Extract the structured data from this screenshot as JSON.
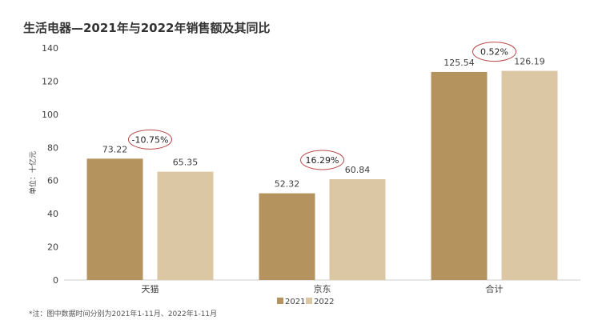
{
  "colors": {
    "s2021": "#b5935f",
    "s2022": "#dbc7a3",
    "ellipse": "#b94a4a",
    "axis": "#cccccc",
    "text": "#404040"
  },
  "chart_data": {
    "type": "bar",
    "title": "生活电器—2021年与2022年销售额及其同比",
    "ylabel": "单位：十亿元",
    "categories": [
      "天猫",
      "京东",
      "合计"
    ],
    "series": [
      {
        "name": "2021",
        "values": [
          73.22,
          52.32,
          125.54
        ]
      },
      {
        "name": "2022",
        "values": [
          65.35,
          60.84,
          126.19
        ]
      }
    ],
    "growth": [
      "-10.75%",
      "16.29%",
      "0.52%"
    ],
    "ylim": [
      0,
      140
    ],
    "yticks": [
      0,
      20,
      40,
      60,
      80,
      100,
      120,
      140
    ],
    "legend": "bottom",
    "grid": false,
    "footnote": "*注：图中数据时间分别为2021年1-11月、2022年1-11月"
  }
}
